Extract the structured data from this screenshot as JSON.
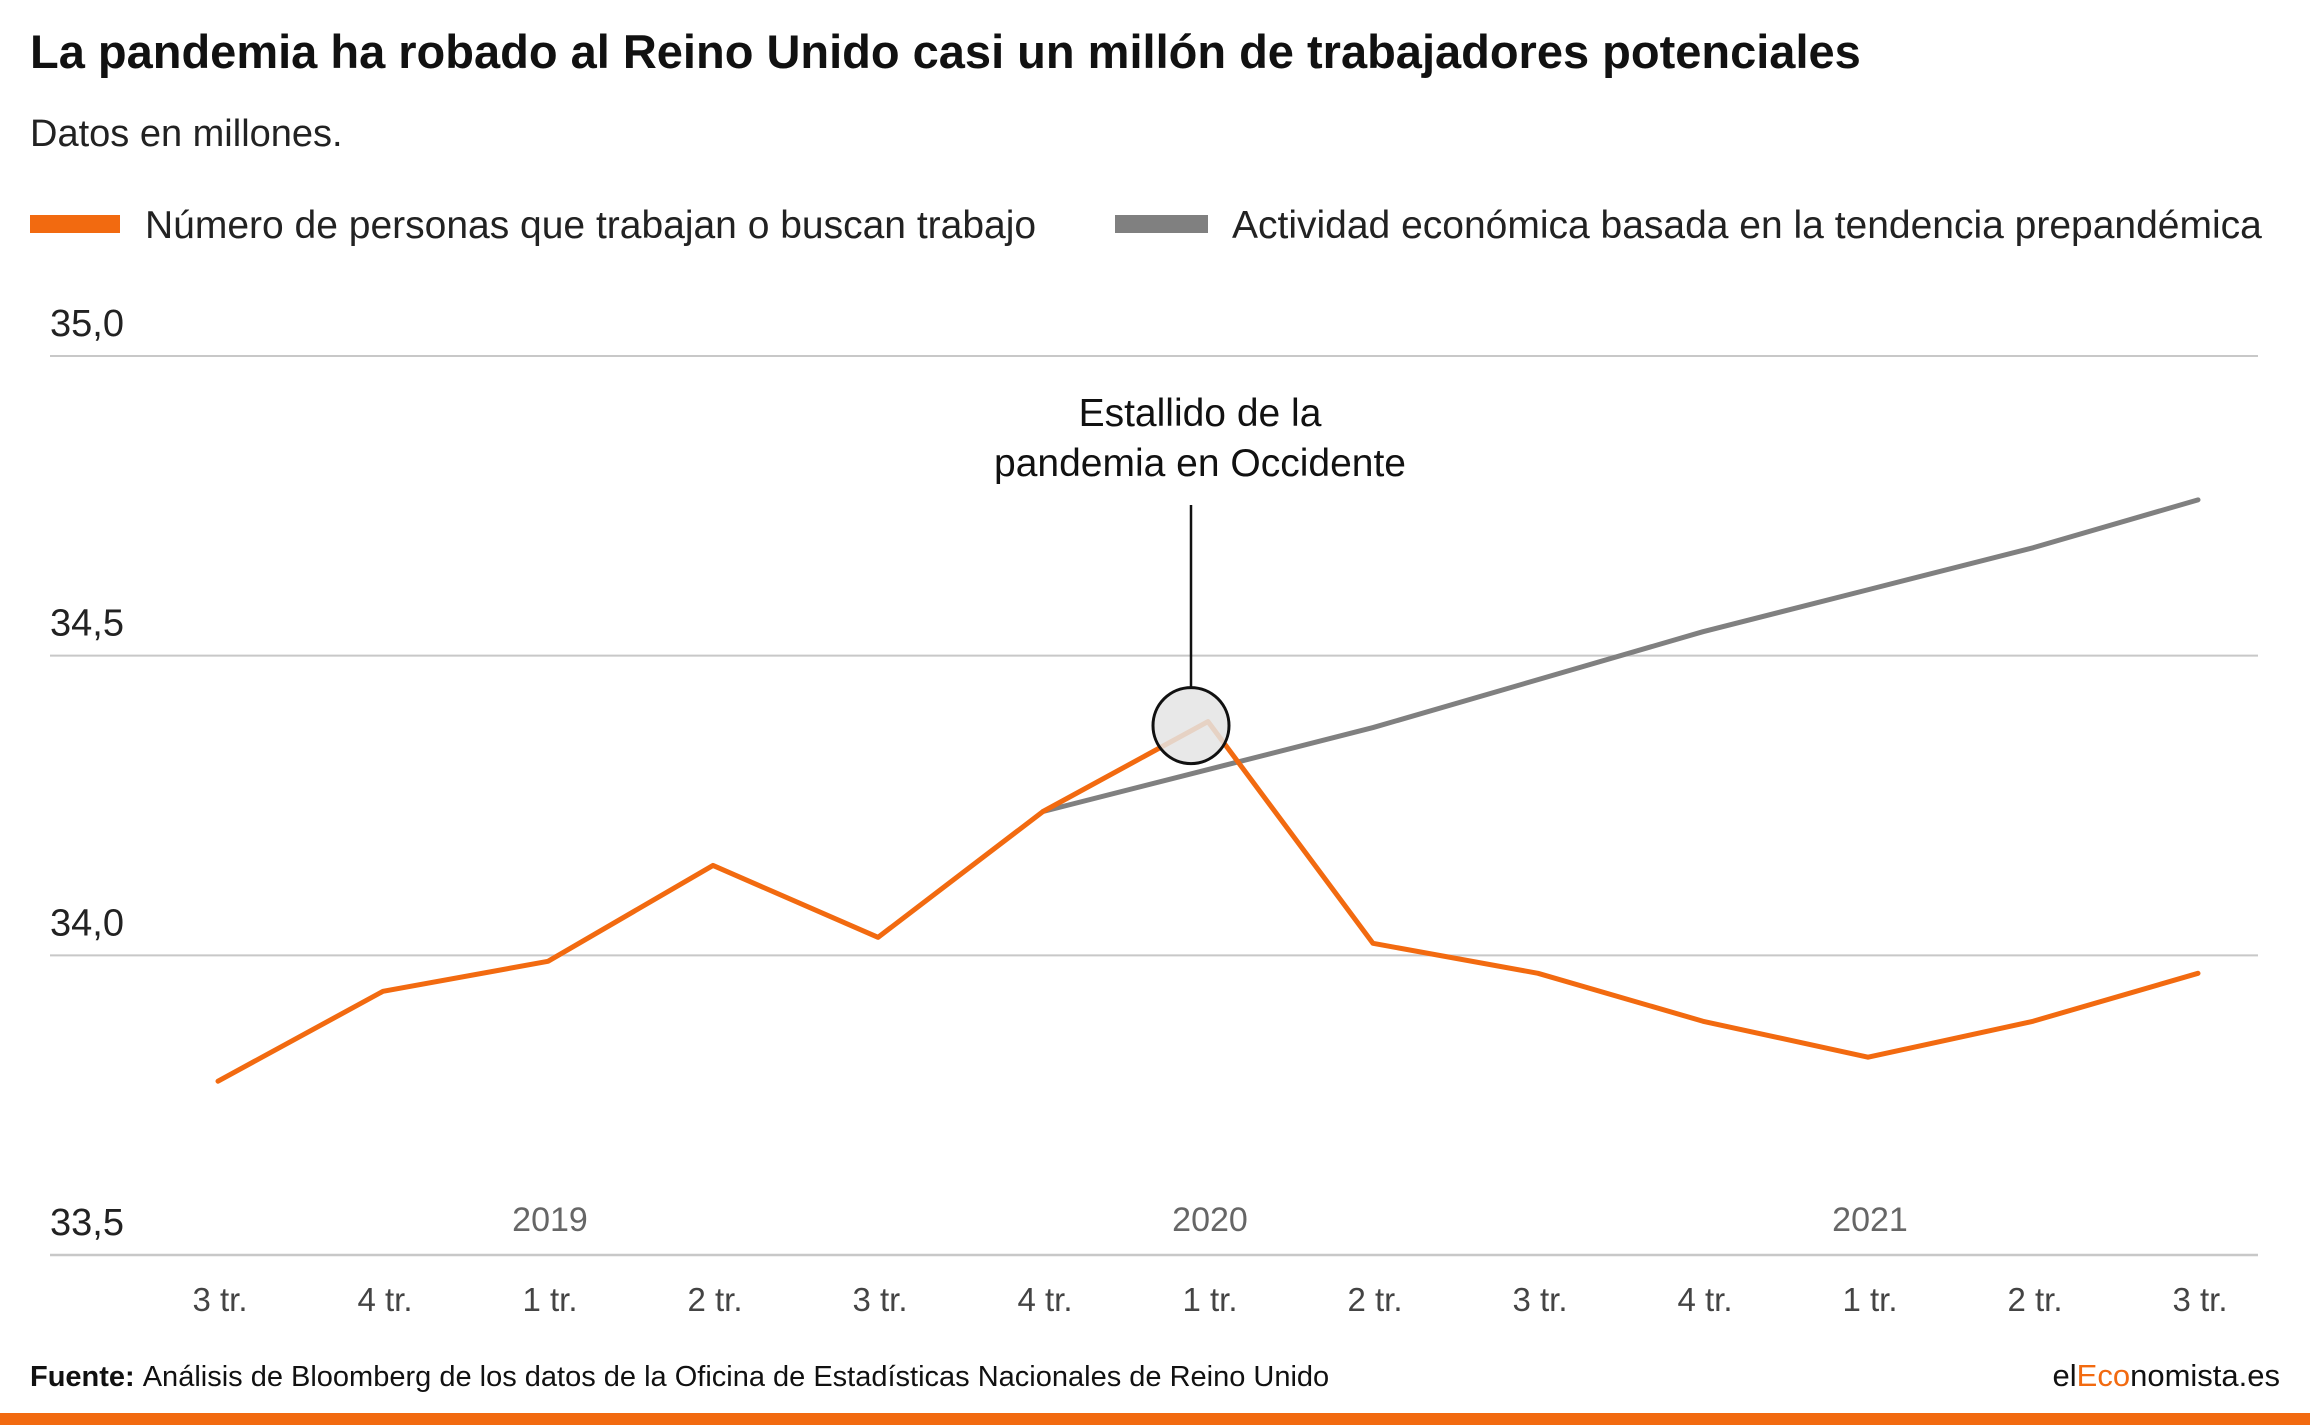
{
  "colors": {
    "accent": "#f26a10",
    "trend": "#808080",
    "grid": "#c8c8c8",
    "annotation_fill": "#e4e4e4"
  },
  "chart_data": {
    "type": "line",
    "title": "La pandemia ha robado al Reino Unido casi un millón de trabajadores potenciales",
    "subtitle": "Datos en millones.",
    "ylim": [
      33.5,
      35.0
    ],
    "y_ticks": [
      "33,5",
      "34,0",
      "34,5",
      "35,0"
    ],
    "y_tick_values": [
      33.5,
      34.0,
      34.5,
      35.0
    ],
    "categories": [
      "3 tr.",
      "4 tr.",
      "1 tr.",
      "2 tr.",
      "3 tr.",
      "4 tr.",
      "1 tr.",
      "2 tr.",
      "3 tr.",
      "4 tr.",
      "1 tr.",
      "2 tr.",
      "3 tr."
    ],
    "year_labels": [
      {
        "label": "2019",
        "category_index": 2
      },
      {
        "label": "2020",
        "category_index": 6
      },
      {
        "label": "2021",
        "category_index": 10
      }
    ],
    "grid": true,
    "legend_position": "top",
    "series": [
      {
        "name": "Número de personas que trabajan o buscan trabajo",
        "color": "#f26a10",
        "values": [
          33.79,
          33.94,
          33.99,
          34.15,
          34.03,
          34.24,
          34.39,
          34.02,
          33.97,
          33.89,
          33.83,
          33.89,
          33.97
        ]
      },
      {
        "name": "Actividad económica basada en la tendencia prepandémica",
        "color": "#808080",
        "values": [
          null,
          null,
          null,
          null,
          null,
          34.24,
          34.31,
          34.38,
          34.46,
          34.54,
          34.61,
          34.68,
          34.76
        ]
      }
    ],
    "annotation": {
      "text_lines": [
        "Estallido de la",
        "pandemia en Occidente"
      ],
      "category_index": 6,
      "value": 34.39
    }
  },
  "footer": {
    "source_label": "Fuente:",
    "source_text": "Análisis de Bloomberg de los datos de la Oficina de Estadísticas Nacionales de Reino Unido",
    "brand_prefix": "el",
    "brand_highlight": "Eco",
    "brand_suffix": "nomista.es"
  }
}
